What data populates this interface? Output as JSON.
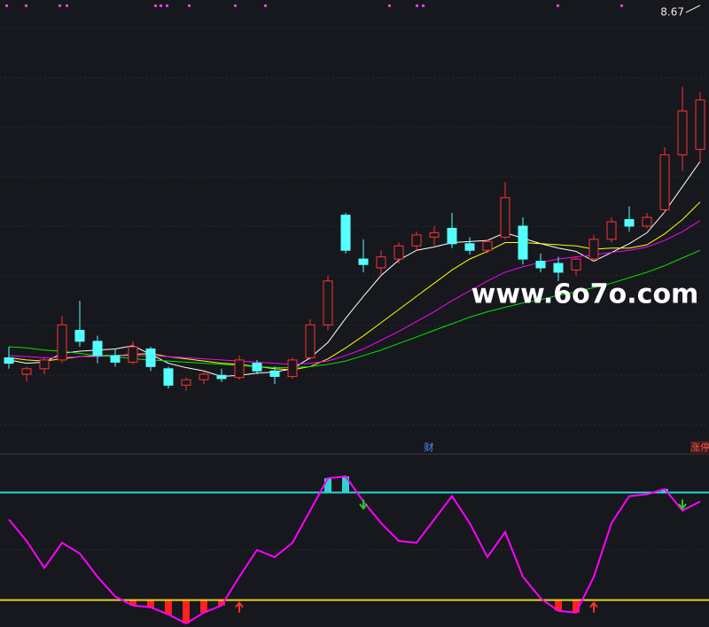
{
  "chart_data": [
    {
      "type": "candlestick",
      "max_price": 8.67,
      "event_label": "财",
      "limit_label": "涨停",
      "watermark": "www.6o7o.com",
      "ylim": [
        5.5,
        9.3
      ],
      "up_color": "#ff3232",
      "down_color": "#54ffff",
      "open": [
        6.2,
        6.05,
        6.1,
        6.18,
        6.45,
        6.35,
        6.22,
        6.16,
        6.28,
        6.1,
        5.95,
        6.0,
        6.04,
        6.02,
        6.15,
        6.08,
        6.03,
        6.2,
        6.5,
        7.5,
        7.1,
        7.02,
        7.1,
        7.22,
        7.3,
        7.38,
        7.24,
        7.18,
        7.3,
        7.4,
        7.08,
        7.06,
        7.0,
        7.1,
        7.28,
        7.46,
        7.4,
        7.55,
        8.05,
        8.1
      ],
      "high": [
        6.3,
        6.12,
        6.2,
        6.58,
        6.72,
        6.4,
        6.28,
        6.35,
        6.3,
        6.12,
        6.02,
        6.08,
        6.1,
        6.22,
        6.18,
        6.12,
        6.2,
        6.55,
        6.95,
        7.52,
        7.28,
        7.18,
        7.25,
        7.35,
        7.4,
        7.52,
        7.3,
        7.28,
        7.8,
        7.48,
        7.15,
        7.12,
        7.12,
        7.32,
        7.48,
        7.58,
        7.52,
        8.12,
        8.67,
        8.62
      ],
      "low": [
        6.1,
        5.98,
        6.05,
        6.15,
        6.3,
        6.15,
        6.12,
        6.14,
        6.08,
        5.92,
        5.9,
        5.96,
        5.98,
        6.0,
        6.05,
        5.96,
        6.01,
        6.18,
        6.45,
        7.15,
        6.98,
        6.95,
        7.06,
        7.18,
        7.22,
        7.2,
        7.14,
        7.15,
        7.28,
        7.05,
        6.98,
        6.9,
        6.95,
        7.08,
        7.25,
        7.35,
        7.38,
        7.52,
        7.9,
        7.98
      ],
      "close": [
        6.15,
        6.1,
        6.18,
        6.5,
        6.35,
        6.22,
        6.16,
        6.3,
        6.12,
        5.95,
        6.0,
        6.05,
        6.01,
        6.18,
        6.08,
        6.03,
        6.18,
        6.5,
        6.9,
        7.18,
        7.05,
        7.12,
        7.22,
        7.32,
        7.34,
        7.24,
        7.18,
        7.26,
        7.66,
        7.1,
        7.02,
        6.98,
        7.1,
        7.28,
        7.44,
        7.4,
        7.48,
        8.05,
        8.45,
        8.55
      ],
      "series": [
        {
          "color": "#ffffff",
          "values": [
            6.18,
            6.15,
            6.16,
            6.24,
            6.26,
            6.27,
            6.28,
            6.31,
            6.23,
            6.15,
            6.11,
            6.08,
            6.03,
            6.04,
            6.06,
            6.07,
            6.1,
            6.2,
            6.34,
            6.56,
            6.76,
            6.95,
            7.09,
            7.18,
            7.21,
            7.25,
            7.26,
            7.27,
            7.34,
            7.29,
            7.24,
            7.2,
            7.17,
            7.08,
            7.16,
            7.24,
            7.34,
            7.53,
            7.76,
            7.99
          ]
        },
        {
          "color": "#ffff00",
          "values": [
            6.2,
            6.18,
            6.17,
            6.19,
            6.21,
            6.22,
            6.22,
            6.23,
            6.24,
            6.21,
            6.19,
            6.17,
            6.15,
            6.14,
            6.12,
            6.1,
            6.09,
            6.12,
            6.19,
            6.29,
            6.4,
            6.52,
            6.64,
            6.76,
            6.88,
            7.0,
            7.1,
            7.17,
            7.25,
            7.25,
            7.24,
            7.23,
            7.22,
            7.19,
            7.2,
            7.2,
            7.23,
            7.33,
            7.46,
            7.62
          ]
        },
        {
          "color": "#ff00ff",
          "values": [
            6.22,
            6.21,
            6.2,
            6.2,
            6.21,
            6.21,
            6.22,
            6.22,
            6.22,
            6.21,
            6.2,
            6.19,
            6.18,
            6.17,
            6.16,
            6.15,
            6.14,
            6.15,
            6.17,
            6.22,
            6.28,
            6.36,
            6.44,
            6.53,
            6.62,
            6.72,
            6.81,
            6.9,
            6.98,
            7.03,
            7.07,
            7.1,
            7.12,
            7.14,
            7.16,
            7.18,
            7.21,
            7.27,
            7.35,
            7.45
          ]
        },
        {
          "color": "#00e600",
          "values": [
            6.3,
            6.29,
            6.27,
            6.26,
            6.24,
            6.22,
            6.21,
            6.19,
            6.18,
            6.17,
            6.16,
            6.15,
            6.14,
            6.13,
            6.12,
            6.11,
            6.11,
            6.12,
            6.14,
            6.17,
            6.22,
            6.27,
            6.33,
            6.39,
            6.45,
            6.51,
            6.57,
            6.62,
            6.66,
            6.7,
            6.73,
            6.77,
            6.8,
            6.84,
            6.88,
            6.93,
            6.98,
            7.04,
            7.11,
            7.18
          ]
        }
      ]
    },
    {
      "type": "line",
      "ylim": [
        5,
        100
      ],
      "color": "#ff00ff",
      "levels": [
        {
          "value": 80,
          "color": "#2fd3d3"
        },
        {
          "value": 20,
          "color": "#e6d21e"
        }
      ],
      "values": [
        65,
        53,
        38,
        52,
        46,
        33,
        22,
        17,
        16,
        12,
        7,
        13,
        17,
        33,
        48,
        44,
        52,
        70,
        88,
        89,
        75,
        63,
        53,
        52,
        65,
        78,
        63,
        44,
        58,
        33,
        21,
        14,
        13,
        33,
        63,
        78,
        79,
        82,
        70,
        75
      ]
    }
  ]
}
